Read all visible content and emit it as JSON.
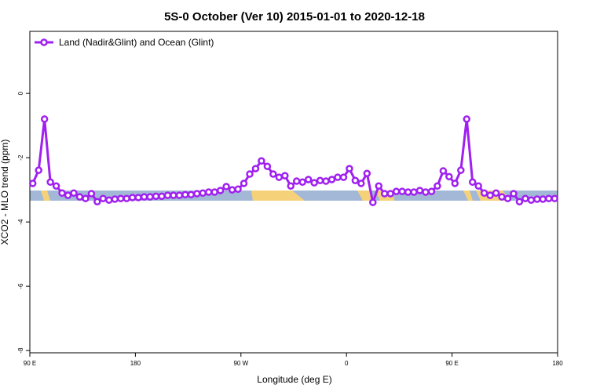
{
  "chart_data": {
    "type": "line",
    "title": "5S-0 October (Ver 10)   2015-01-01 to 2020-12-18",
    "xlabel": "Longitude (deg E)",
    "ylabel": "XCO2 - MLO trend (ppm)",
    "x": [
      92.5,
      97.5,
      102.5,
      107.5,
      112.5,
      117.5,
      122.5,
      127.5,
      132.5,
      137.5,
      142.5,
      147.5,
      152.5,
      157.5,
      162.5,
      167.5,
      172.5,
      177.5,
      182.5,
      187.5,
      192.5,
      197.5,
      202.5,
      207.5,
      212.5,
      217.5,
      222.5,
      227.5,
      232.5,
      237.5,
      242.5,
      247.5,
      252.5,
      257.5,
      262.5,
      267.5,
      272.5,
      277.5,
      282.5,
      287.5,
      292.5,
      297.5,
      302.5,
      307.5,
      312.5,
      317.5,
      322.5,
      327.5,
      332.5,
      337.5,
      342.5,
      347.5,
      352.5,
      357.5,
      362.5,
      367.5,
      372.5,
      377.5,
      382.5,
      387.5,
      392.5,
      397.5,
      402.5,
      407.5,
      412.5,
      417.5,
      422.5,
      427.5,
      432.5,
      437.5,
      442.5,
      447.5,
      452.5,
      457.5,
      462.5,
      467.5,
      472.5,
      477.5,
      482.5,
      487.5,
      492.5,
      497.5,
      502.5,
      507.5,
      512.5,
      517.5,
      522.5,
      527.5,
      532.5,
      537.5
    ],
    "series": [
      {
        "name": "Land (Nadir&Glint) and Ocean (Glint)",
        "color": "#a020f0",
        "values": [
          -2.8,
          -2.39,
          -0.8,
          -2.76,
          -2.88,
          -3.1,
          -3.17,
          -3.1,
          -3.22,
          -3.27,
          -3.12,
          -3.37,
          -3.27,
          -3.32,
          -3.29,
          -3.27,
          -3.27,
          -3.24,
          -3.24,
          -3.22,
          -3.22,
          -3.2,
          -3.2,
          -3.17,
          -3.17,
          -3.17,
          -3.15,
          -3.15,
          -3.12,
          -3.1,
          -3.07,
          -3.07,
          -3.02,
          -2.9,
          -3.0,
          -2.98,
          -2.8,
          -2.51,
          -2.34,
          -2.1,
          -2.27,
          -2.51,
          -2.61,
          -2.56,
          -2.88,
          -2.73,
          -2.76,
          -2.68,
          -2.78,
          -2.71,
          -2.73,
          -2.68,
          -2.61,
          -2.61,
          -2.34,
          -2.71,
          -2.8,
          -2.49,
          -3.39,
          -2.88,
          -3.12,
          -3.12,
          -3.05,
          -3.05,
          -3.07,
          -3.07,
          -3.02,
          -3.07,
          -3.05,
          -2.88,
          -2.41,
          -2.59,
          -2.8,
          -2.39,
          -0.8,
          -2.76,
          -2.88,
          -3.1,
          -3.17,
          -3.1,
          -3.22,
          -3.27,
          -3.12,
          -3.37,
          -3.27,
          -3.32,
          -3.29,
          -3.29,
          -3.27,
          -3.27
        ]
      }
    ],
    "xlim": [
      90,
      540
    ],
    "xticks": [
      {
        "value": 90,
        "label": "90 E"
      },
      180,
      {
        "value": 270,
        "label": "90 W"
      },
      {
        "value": 360,
        "label": "0"
      },
      {
        "value": 450,
        "label": "90 E"
      },
      {
        "value": 540,
        "label": "180"
      }
    ],
    "ylim": [
      -8.07,
      1.93
    ],
    "yticks": [
      -8,
      -6,
      -4,
      -2,
      0
    ],
    "legend": "top-left"
  }
}
